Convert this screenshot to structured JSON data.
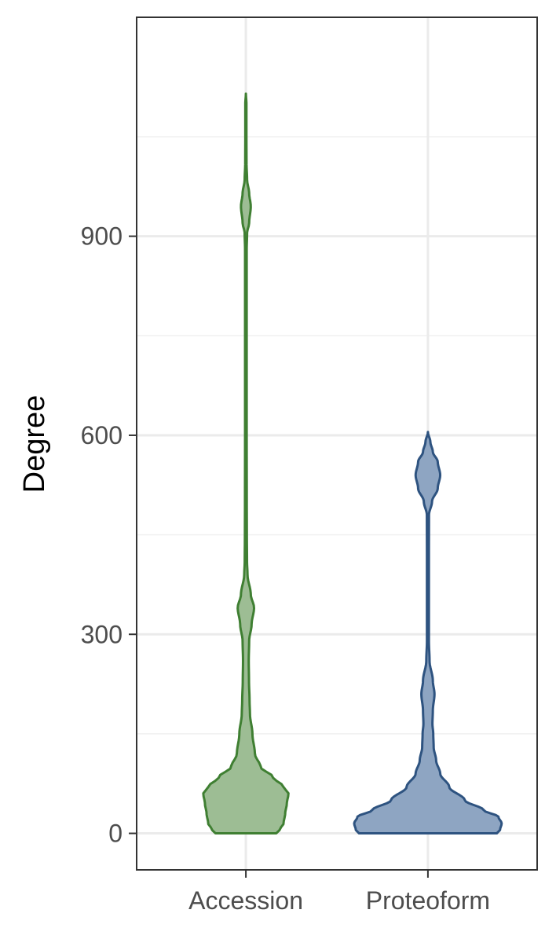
{
  "chart_data": {
    "type": "violin",
    "ylabel": "Degree",
    "xlabel": "",
    "categories": [
      "Accession",
      "Proteoform"
    ],
    "ylim": [
      -55,
      1230
    ],
    "y_ticks": [
      0,
      300,
      600,
      900
    ],
    "grid": true,
    "legend": "none",
    "series": [
      {
        "category": "Accession",
        "fill": "#9dbd94",
        "stroke": "#3f7f32",
        "y_range": [
          0,
          1115
        ],
        "density_profile": [
          [
            0,
            0.37
          ],
          [
            5,
            0.41
          ],
          [
            15,
            0.46
          ],
          [
            30,
            0.48
          ],
          [
            45,
            0.5
          ],
          [
            60,
            0.52
          ],
          [
            70,
            0.46
          ],
          [
            85,
            0.33
          ],
          [
            100,
            0.18
          ],
          [
            120,
            0.11
          ],
          [
            150,
            0.08
          ],
          [
            180,
            0.05
          ],
          [
            200,
            0.045
          ],
          [
            230,
            0.038
          ],
          [
            260,
            0.035
          ],
          [
            290,
            0.04
          ],
          [
            315,
            0.07
          ],
          [
            340,
            0.1
          ],
          [
            360,
            0.06
          ],
          [
            390,
            0.02
          ],
          [
            410,
            0.014
          ],
          [
            450,
            0.012
          ],
          [
            500,
            0.011
          ],
          [
            600,
            0.01
          ],
          [
            700,
            0.01
          ],
          [
            800,
            0.01
          ],
          [
            880,
            0.01
          ],
          [
            905,
            0.015
          ],
          [
            920,
            0.04
          ],
          [
            945,
            0.06
          ],
          [
            965,
            0.04
          ],
          [
            985,
            0.015
          ],
          [
            1010,
            0.008
          ],
          [
            1050,
            0.007
          ],
          [
            1100,
            0.007
          ],
          [
            1115,
            0.0
          ]
        ]
      },
      {
        "category": "Proteoform",
        "fill": "#8ea5c2",
        "stroke": "#2e5380",
        "y_range": [
          0,
          605
        ],
        "density_profile": [
          [
            0,
            0.84
          ],
          [
            5,
            0.88
          ],
          [
            15,
            0.9
          ],
          [
            25,
            0.86
          ],
          [
            35,
            0.68
          ],
          [
            50,
            0.45
          ],
          [
            70,
            0.26
          ],
          [
            90,
            0.15
          ],
          [
            110,
            0.1
          ],
          [
            130,
            0.07
          ],
          [
            150,
            0.065
          ],
          [
            165,
            0.055
          ],
          [
            185,
            0.06
          ],
          [
            210,
            0.08
          ],
          [
            230,
            0.06
          ],
          [
            260,
            0.02
          ],
          [
            290,
            0.012
          ],
          [
            350,
            0.012
          ],
          [
            420,
            0.012
          ],
          [
            480,
            0.013
          ],
          [
            500,
            0.05
          ],
          [
            520,
            0.12
          ],
          [
            540,
            0.15
          ],
          [
            560,
            0.12
          ],
          [
            575,
            0.06
          ],
          [
            590,
            0.03
          ],
          [
            605,
            0.0
          ]
        ]
      }
    ]
  }
}
